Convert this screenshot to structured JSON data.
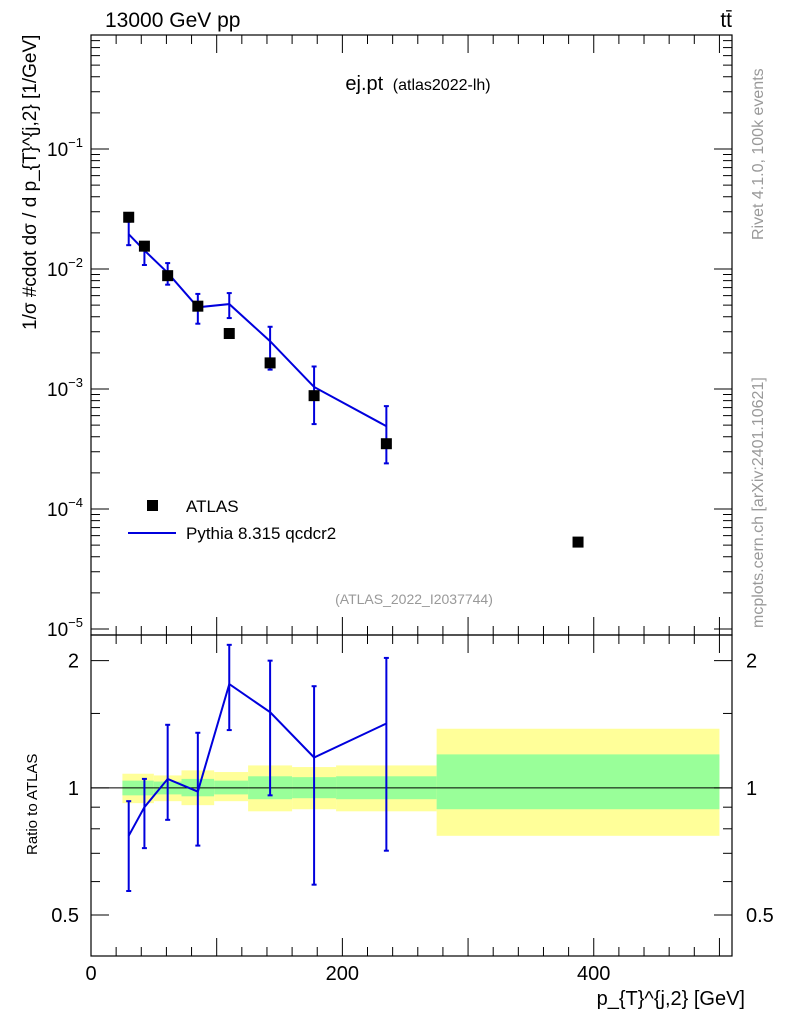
{
  "header": {
    "energy_label": "13000 GeV pp",
    "process_label": "tt̄"
  },
  "side_labels": {
    "rivet": "Rivet 4.1.0,  100k events",
    "mcplots": "mcplots.cern.ch [arXiv:2401.10621]"
  },
  "colors": {
    "data": "#000000",
    "mc": "#0000dd",
    "band_inner": "#99ff99",
    "band_outer": "#ffff99",
    "watermark": "#999999"
  },
  "chart_data": [
    {
      "type": "scatter",
      "panel": "main",
      "title": "ej.pt",
      "subtitle": "(atlas2022-lh)",
      "watermark": "(ATLAS_2022_I2037744)",
      "ylabel": "1/σ #cdot dσ / d p_{T}^{j,2} [1/GeV]",
      "yscale": "log",
      "ylim": [
        1e-05,
        1
      ],
      "xlim": [
        0,
        510
      ],
      "yticks": [
        {
          "value": 0.1,
          "base": "10",
          "exp": "−1"
        },
        {
          "value": 0.01,
          "base": "10",
          "exp": "−2"
        },
        {
          "value": 0.001,
          "base": "10",
          "exp": "−3"
        },
        {
          "value": 0.0001,
          "base": "10",
          "exp": "−4"
        },
        {
          "value": 1e-05,
          "base": "10",
          "exp": "−5"
        }
      ],
      "legend": [
        {
          "label": "ATLAS",
          "kind": "marker"
        },
        {
          "label": "Pythia 8.315 qcdcr2",
          "kind": "line"
        }
      ],
      "legend_position": "bottom-left",
      "series": [
        {
          "name": "ATLAS",
          "x": [
            30,
            42.5,
            61,
            85,
            110,
            142.5,
            177.5,
            235,
            387.5
          ],
          "values": [
            0.027,
            0.0155,
            0.0088,
            0.0049,
            0.0029,
            0.00165,
            0.00088,
            0.00035,
            5.3e-05
          ]
        },
        {
          "name": "Pythia 8.315 qcdcr2",
          "x": [
            30,
            42.5,
            61,
            85,
            110,
            142.5,
            177.5,
            235
          ],
          "values": [
            0.0195,
            0.0143,
            0.0093,
            0.0048,
            0.0051,
            0.0025,
            0.00104,
            0.00049
          ],
          "err_low": [
            0.0158,
            0.0108,
            0.0074,
            0.0035,
            0.0039,
            0.00145,
            0.00051,
            0.00024
          ],
          "err_high": [
            0.0248,
            0.0162,
            0.0112,
            0.0062,
            0.0063,
            0.0033,
            0.00154,
            0.00072
          ]
        }
      ]
    },
    {
      "type": "line",
      "panel": "ratio",
      "ylabel": "Ratio to ATLAS",
      "xlabel": "p_{T}^{j,2} [GeV]",
      "ylim": [
        0.4,
        2.3
      ],
      "xlim": [
        0,
        510
      ],
      "yticks": [
        0.5,
        1,
        2
      ],
      "ytick_labels": [
        "0.5",
        "1",
        "2"
      ],
      "xticks": [
        0,
        200,
        400
      ],
      "xtick_labels": [
        "0",
        "200",
        "400"
      ],
      "reference_line": 1,
      "bands": [
        {
          "x_low": 25,
          "x_high": 35,
          "outer": [
            0.92,
            1.08
          ],
          "inner": [
            0.96,
            1.04
          ]
        },
        {
          "x_low": 35,
          "x_high": 50,
          "outer": [
            0.92,
            1.08
          ],
          "inner": [
            0.96,
            1.04
          ]
        },
        {
          "x_low": 50,
          "x_high": 72,
          "outer": [
            0.93,
            1.07
          ],
          "inner": [
            0.965,
            1.035
          ]
        },
        {
          "x_low": 72,
          "x_high": 98,
          "outer": [
            0.91,
            1.1
          ],
          "inner": [
            0.955,
            1.05
          ]
        },
        {
          "x_low": 98,
          "x_high": 125,
          "outer": [
            0.93,
            1.09
          ],
          "inner": [
            0.965,
            1.04
          ]
        },
        {
          "x_low": 125,
          "x_high": 160,
          "outer": [
            0.88,
            1.13
          ],
          "inner": [
            0.94,
            1.065
          ]
        },
        {
          "x_low": 160,
          "x_high": 195,
          "outer": [
            0.89,
            1.12
          ],
          "inner": [
            0.945,
            1.06
          ]
        },
        {
          "x_low": 195,
          "x_high": 275,
          "outer": [
            0.88,
            1.13
          ],
          "inner": [
            0.94,
            1.065
          ]
        },
        {
          "x_low": 275,
          "x_high": 500,
          "outer": [
            0.77,
            1.38
          ],
          "inner": [
            0.89,
            1.2
          ]
        }
      ],
      "series": [
        {
          "name": "Pythia 8.315 qcdcr2 / ATLAS",
          "x": [
            30,
            42.5,
            61,
            85,
            110,
            142.5,
            177.5,
            235
          ],
          "values": [
            0.77,
            0.9,
            1.05,
            0.98,
            1.76,
            1.51,
            1.18,
            1.42
          ],
          "err_low": [
            0.57,
            0.72,
            0.84,
            0.73,
            1.37,
            0.96,
            0.59,
            0.71
          ],
          "err_high": [
            0.93,
            1.05,
            1.41,
            1.35,
            2.18,
            2.0,
            1.74,
            2.03
          ]
        }
      ]
    }
  ]
}
